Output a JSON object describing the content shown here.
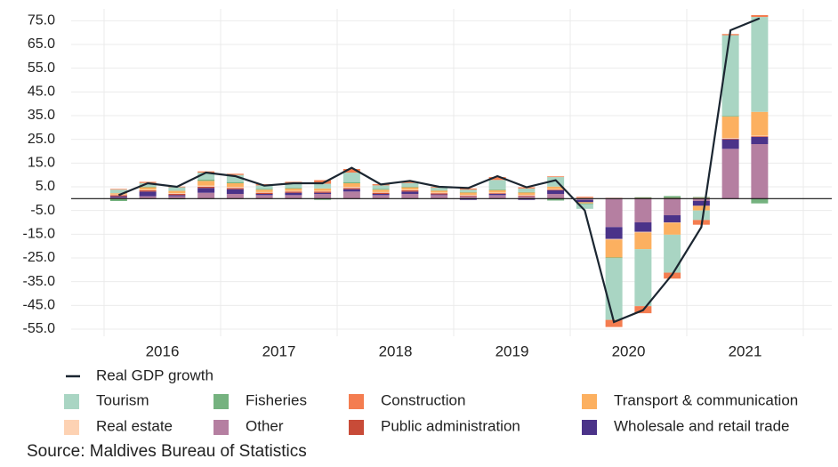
{
  "chart_data": {
    "type": "stacked-bar-line",
    "categories": [
      null,
      null,
      null,
      null,
      null,
      null,
      null,
      null,
      null,
      null,
      null,
      null,
      null,
      null,
      null,
      null,
      null,
      null,
      null,
      null,
      null,
      null,
      null,
      null
    ],
    "years": [
      "2016",
      "2017",
      "2018",
      "2019",
      "2020",
      "2021"
    ],
    "ylim": [
      -58,
      80
    ],
    "yticks": [
      {
        "value": 75,
        "label": "75.0"
      },
      {
        "value": 65,
        "label": "65.0"
      },
      {
        "value": 55,
        "label": "55.0"
      },
      {
        "value": 45,
        "label": "45.0"
      },
      {
        "value": 35,
        "label": "35.0"
      },
      {
        "value": 25,
        "label": "25.0"
      },
      {
        "value": 15,
        "label": "15.0"
      },
      {
        "value": 5,
        "label": "5.0"
      },
      {
        "value": -5,
        "label": "-5.0"
      },
      {
        "value": -15,
        "label": "-15.0"
      },
      {
        "value": -25,
        "label": "-25.0"
      },
      {
        "value": -35,
        "label": "-35.0"
      },
      {
        "value": -45,
        "label": "-45.0"
      },
      {
        "value": -55,
        "label": "-55.0"
      }
    ],
    "grid": true,
    "series": [
      {
        "name": "Tourism",
        "color": "#a9d5c3",
        "values": [
          1.5,
          1.5,
          1.5,
          3,
          3,
          1.5,
          2,
          2,
          4,
          1.5,
          1.5,
          1,
          1,
          4,
          1.5,
          4,
          -2,
          -26,
          -24,
          -16,
          -4,
          34,
          40,
          null
        ]
      },
      {
        "name": "Fisheries",
        "color": "#75b27f",
        "values": [
          -1,
          0.3,
          -0.3,
          0.5,
          0.5,
          0.3,
          0.3,
          -0.5,
          0.5,
          0.3,
          0.3,
          0.2,
          0.2,
          0.3,
          0.2,
          -0.8,
          -0.3,
          -0.3,
          0.3,
          0.8,
          0.3,
          0.3,
          -2,
          null
        ]
      },
      {
        "name": "Construction",
        "color": "#f47d50",
        "values": [
          0.3,
          0.5,
          0.3,
          0.5,
          0.5,
          0.5,
          0.5,
          1.5,
          1.5,
          0.5,
          0.5,
          0.3,
          0.5,
          1.2,
          0.5,
          0.3,
          0.3,
          -3,
          -3,
          -2.5,
          -2,
          0.5,
          0.8,
          null
        ]
      },
      {
        "name": "Transport & communication",
        "color": "#fcb060",
        "values": [
          0.5,
          1,
          1,
          2,
          1.5,
          1,
          1,
          1,
          1.5,
          1,
          1,
          0.8,
          1,
          1,
          1,
          1,
          -0.5,
          -7.5,
          -7,
          -5,
          -2,
          9,
          10,
          null
        ]
      },
      {
        "name": "Real estate",
        "color": "#fdd2b3",
        "values": [
          0.3,
          0.3,
          0.3,
          0.5,
          0.5,
          0.3,
          0.3,
          0.3,
          0.5,
          0.3,
          0.3,
          0.3,
          0.3,
          0.3,
          0.3,
          0.3,
          0.2,
          -0.3,
          -0.3,
          -0.2,
          0.1,
          0.3,
          0.3,
          null
        ]
      },
      {
        "name": "Other",
        "color": "#b57fa1",
        "values": [
          0.5,
          1,
          1,
          2.5,
          2,
          1.5,
          1.5,
          2,
          3,
          1.5,
          2,
          1.5,
          1,
          1.5,
          1,
          2,
          -0.5,
          -12,
          -10,
          -7,
          -1,
          21,
          23,
          null
        ]
      },
      {
        "name": "Public administration",
        "color": "#c84b38",
        "values": [
          0.5,
          0.5,
          0.5,
          0.5,
          0.5,
          0.5,
          0.5,
          0.5,
          0.5,
          0.5,
          0.5,
          0.5,
          0.3,
          0.3,
          0.3,
          0.3,
          0.3,
          0.3,
          0.3,
          0.3,
          0.3,
          0.3,
          0.3,
          null
        ]
      },
      {
        "name": "Wholesale and retail trade",
        "color": "#4b3389",
        "values": [
          0.5,
          2,
          0.5,
          2,
          2,
          0.5,
          1,
          0.5,
          1,
          0.5,
          1,
          0.3,
          -0.5,
          0.5,
          -0.5,
          1.5,
          -1,
          -5,
          -4,
          -3,
          -2,
          4,
          3,
          null
        ]
      }
    ],
    "line": {
      "name": "Real GDP growth",
      "color": "#1b2631",
      "values": [
        1.5,
        6.5,
        5,
        11,
        9.5,
        5.5,
        6.5,
        6.5,
        13,
        6,
        7.5,
        5,
        4.5,
        9.5,
        4.8,
        7.8,
        -5,
        -52,
        -47,
        -32,
        -12,
        71,
        76,
        null
      ]
    },
    "source": "Source: Maldives Bureau of Statistics"
  }
}
